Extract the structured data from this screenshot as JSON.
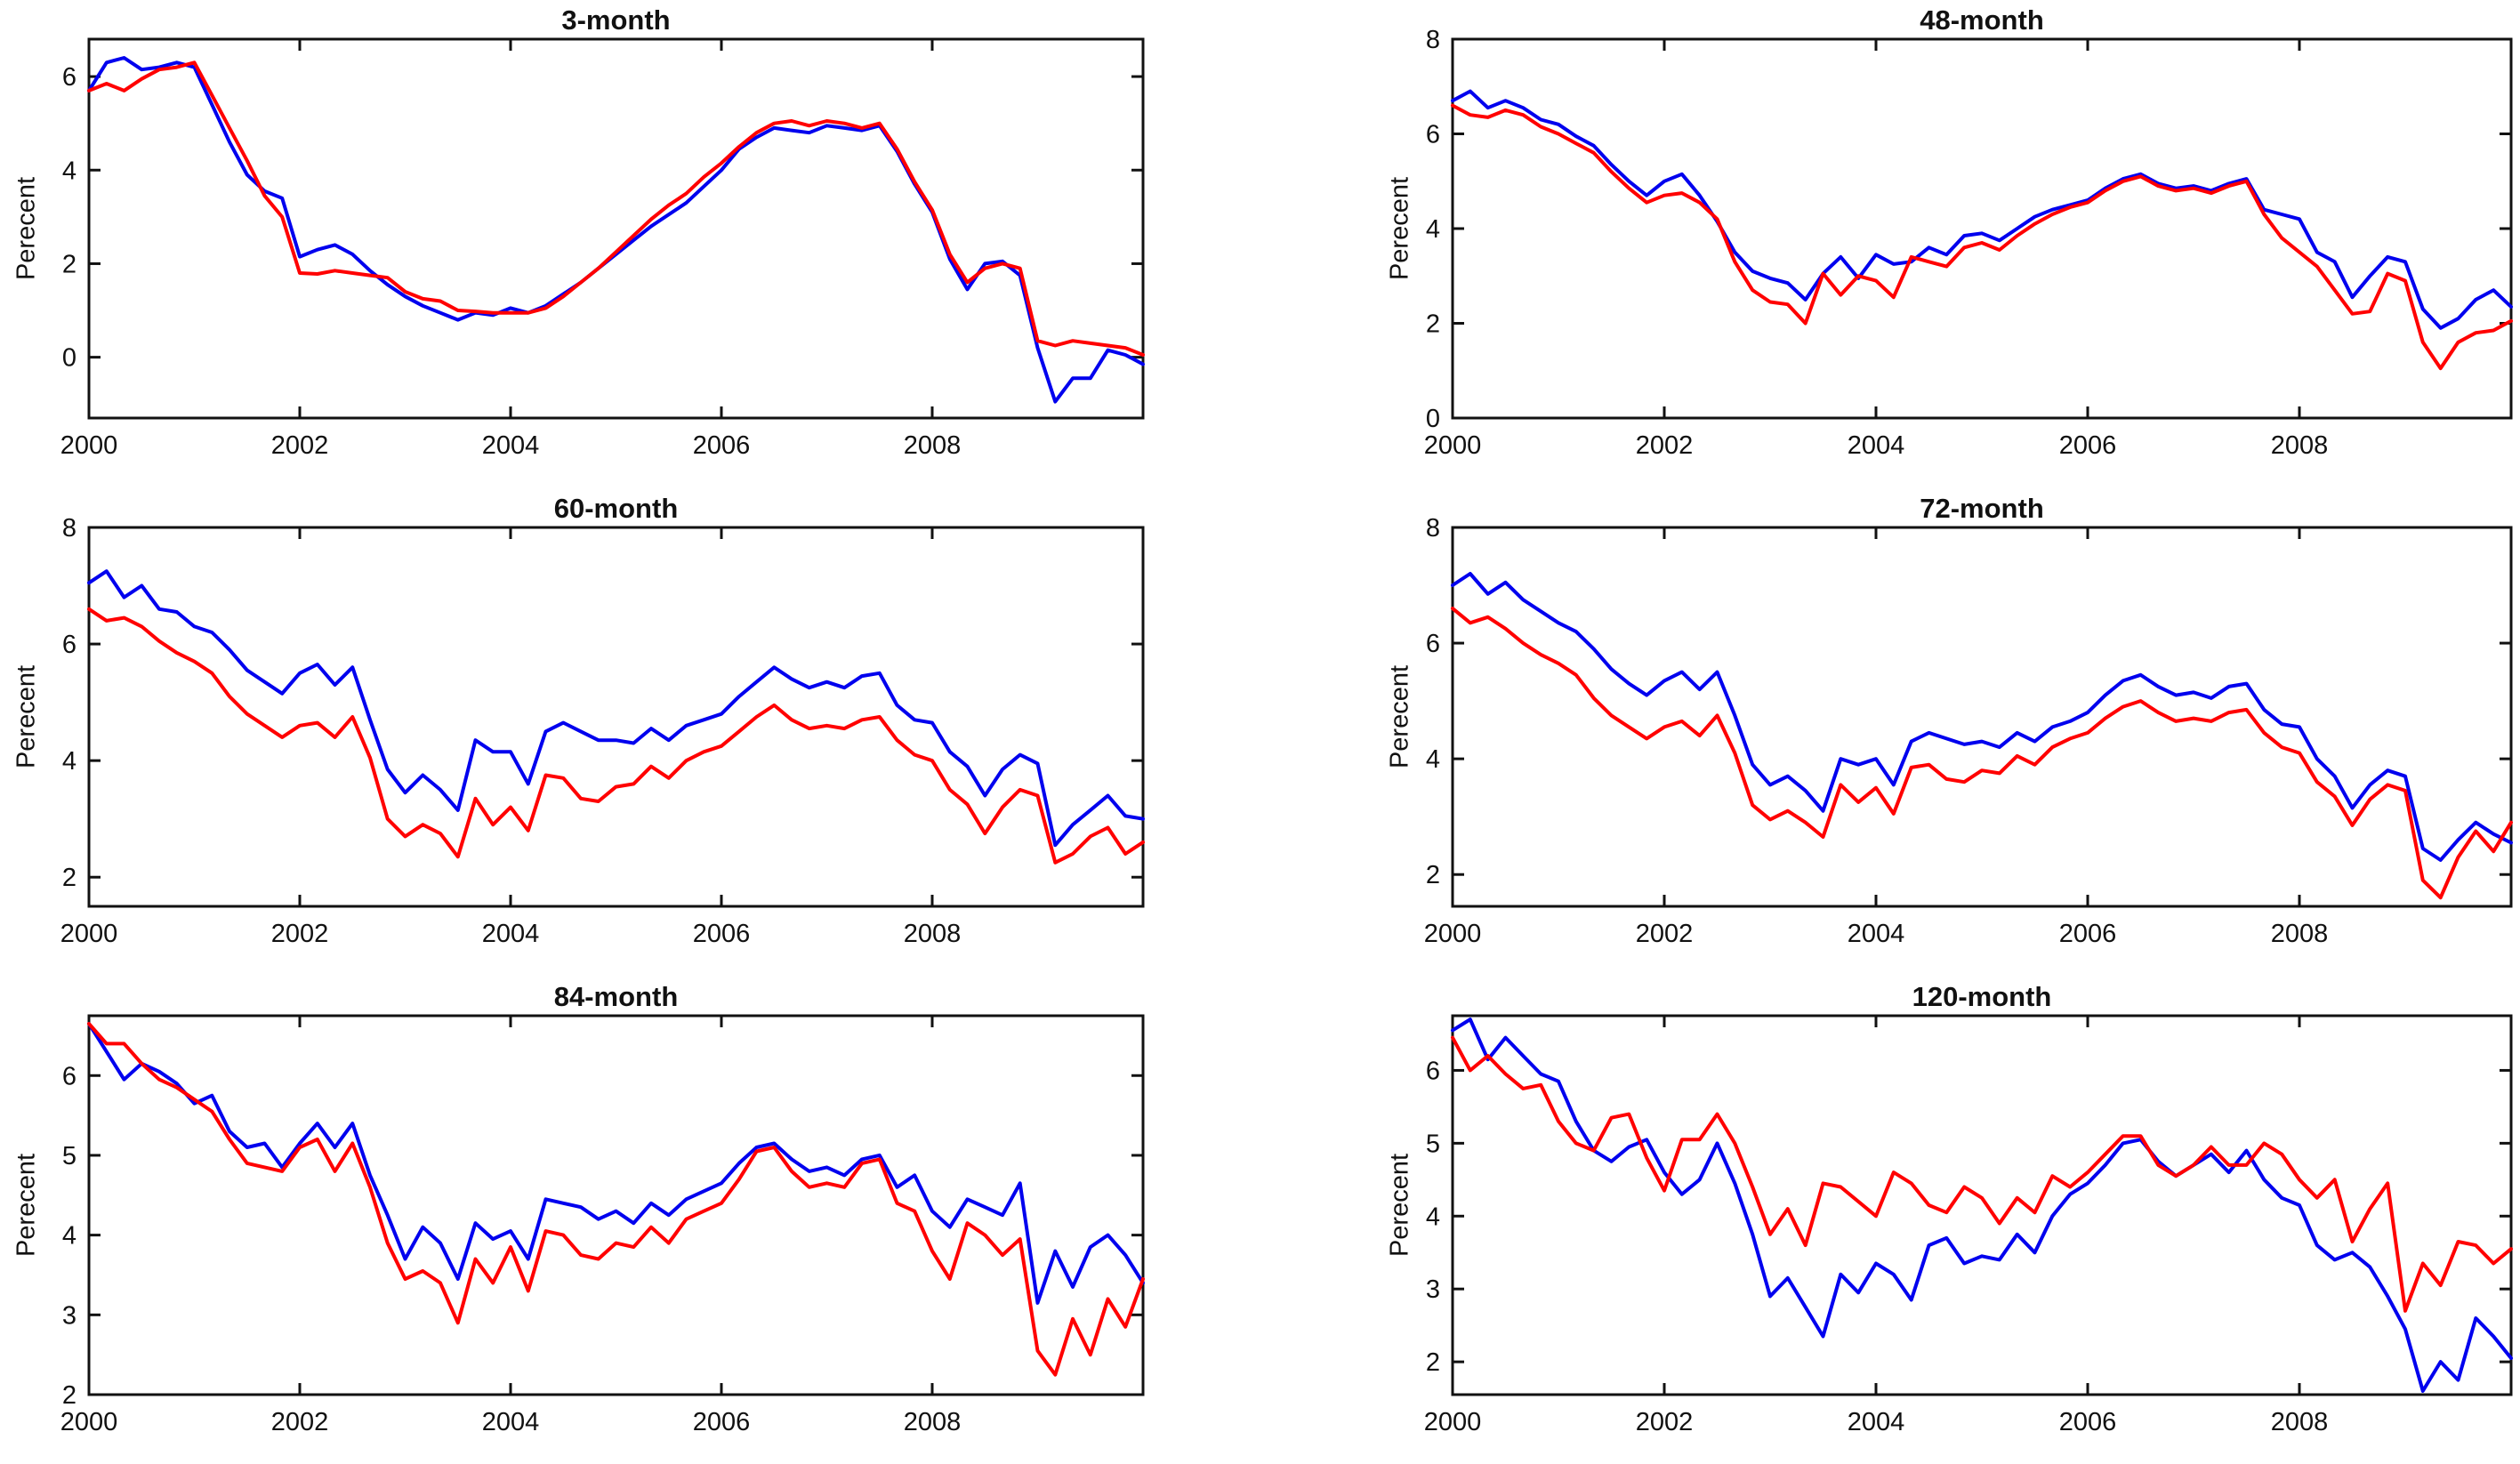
{
  "figure": {
    "background": "#ffffff",
    "axis_color": "#111111",
    "line_colors": {
      "blue": "#0000ee",
      "red": "#ff0000"
    }
  },
  "chart_data": [
    {
      "type": "line",
      "title": "3-month",
      "ylabel": "Perecent",
      "xlabel": "",
      "xlim": [
        2000,
        2010
      ],
      "ylim": [
        -1.3,
        6.8
      ],
      "xticks": [
        2000,
        2002,
        2004,
        2006,
        2008
      ],
      "yticks": [
        0,
        2,
        4,
        6
      ],
      "x_start": 2000,
      "x_step_years": 0.1667,
      "grid": false,
      "legend": "none",
      "series": [
        {
          "name": "blue",
          "color": "#0000ee",
          "values": [
            5.7,
            6.3,
            6.4,
            6.15,
            6.2,
            6.3,
            6.2,
            5.4,
            4.6,
            3.9,
            3.55,
            3.4,
            2.15,
            2.3,
            2.4,
            2.2,
            1.85,
            1.55,
            1.3,
            1.1,
            0.95,
            0.8,
            0.95,
            0.9,
            1.05,
            0.95,
            1.1,
            1.35,
            1.6,
            1.9,
            2.2,
            2.5,
            2.8,
            3.05,
            3.3,
            3.65,
            4.0,
            4.45,
            4.7,
            4.9,
            4.85,
            4.8,
            4.95,
            4.9,
            4.85,
            4.95,
            4.4,
            3.7,
            3.1,
            2.1,
            1.45,
            2.0,
            2.05,
            1.75,
            0.2,
            -0.95,
            -0.45,
            -0.45,
            0.15,
            0.05,
            -0.15
          ]
        },
        {
          "name": "red",
          "color": "#ff0000",
          "values": [
            5.7,
            5.85,
            5.7,
            5.95,
            6.15,
            6.2,
            6.3,
            5.6,
            4.9,
            4.2,
            3.45,
            3.0,
            1.8,
            1.78,
            1.85,
            1.8,
            1.75,
            1.7,
            1.4,
            1.25,
            1.2,
            1.0,
            0.98,
            0.95,
            0.95,
            0.95,
            1.05,
            1.3,
            1.6,
            1.9,
            2.25,
            2.6,
            2.95,
            3.25,
            3.5,
            3.85,
            4.15,
            4.5,
            4.8,
            5.0,
            5.05,
            4.95,
            5.05,
            5.0,
            4.9,
            5.0,
            4.45,
            3.75,
            3.15,
            2.2,
            1.6,
            1.9,
            2.0,
            1.9,
            0.35,
            0.25,
            0.35,
            0.3,
            0.25,
            0.2,
            0.05
          ]
        }
      ]
    },
    {
      "type": "line",
      "title": "48-month",
      "ylabel": "Perecent",
      "xlabel": "",
      "xlim": [
        2000,
        2010
      ],
      "ylim": [
        0,
        8
      ],
      "xticks": [
        2000,
        2002,
        2004,
        2006,
        2008
      ],
      "yticks": [
        0,
        2,
        4,
        6,
        8
      ],
      "x_start": 2000,
      "x_step_years": 0.1667,
      "grid": false,
      "legend": "none",
      "series": [
        {
          "name": "blue",
          "color": "#0000ee",
          "values": [
            6.7,
            6.9,
            6.55,
            6.7,
            6.55,
            6.3,
            6.2,
            5.95,
            5.75,
            5.35,
            5.0,
            4.7,
            5.0,
            5.15,
            4.7,
            4.15,
            3.5,
            3.1,
            2.95,
            2.85,
            2.5,
            3.05,
            3.4,
            2.95,
            3.45,
            3.25,
            3.3,
            3.6,
            3.45,
            3.85,
            3.9,
            3.75,
            4.0,
            4.25,
            4.4,
            4.5,
            4.6,
            4.85,
            5.05,
            5.15,
            4.95,
            4.85,
            4.9,
            4.8,
            4.95,
            5.05,
            4.4,
            4.3,
            4.2,
            3.5,
            3.3,
            2.55,
            3.0,
            3.4,
            3.3,
            2.3,
            1.9,
            2.1,
            2.5,
            2.7,
            2.35
          ]
        },
        {
          "name": "red",
          "color": "#ff0000",
          "values": [
            6.6,
            6.4,
            6.35,
            6.5,
            6.4,
            6.15,
            6.0,
            5.8,
            5.6,
            5.2,
            4.85,
            4.55,
            4.7,
            4.75,
            4.55,
            4.2,
            3.3,
            2.7,
            2.45,
            2.4,
            2.0,
            3.05,
            2.6,
            3.0,
            2.9,
            2.55,
            3.4,
            3.3,
            3.2,
            3.6,
            3.7,
            3.55,
            3.85,
            4.1,
            4.3,
            4.45,
            4.55,
            4.8,
            5.0,
            5.1,
            4.9,
            4.8,
            4.85,
            4.75,
            4.9,
            5.0,
            4.3,
            3.8,
            3.5,
            3.2,
            2.7,
            2.2,
            2.25,
            3.05,
            2.9,
            1.6,
            1.05,
            1.6,
            1.8,
            1.85,
            2.05
          ]
        }
      ]
    },
    {
      "type": "line",
      "title": "60-month",
      "ylabel": "Perecent",
      "xlabel": "",
      "xlim": [
        2000,
        2010
      ],
      "ylim": [
        1.5,
        8
      ],
      "xticks": [
        2000,
        2002,
        2004,
        2006,
        2008
      ],
      "yticks": [
        2,
        4,
        6,
        8
      ],
      "x_start": 2000,
      "x_step_years": 0.1667,
      "grid": false,
      "legend": "none",
      "series": [
        {
          "name": "blue",
          "color": "#0000ee",
          "values": [
            7.05,
            7.25,
            6.8,
            7.0,
            6.6,
            6.55,
            6.3,
            6.2,
            5.9,
            5.55,
            5.35,
            5.15,
            5.5,
            5.65,
            5.3,
            5.6,
            4.7,
            3.85,
            3.45,
            3.75,
            3.5,
            3.15,
            4.35,
            4.15,
            4.15,
            3.6,
            4.5,
            4.65,
            4.5,
            4.35,
            4.35,
            4.3,
            4.55,
            4.35,
            4.6,
            4.7,
            4.8,
            5.1,
            5.35,
            5.6,
            5.4,
            5.25,
            5.35,
            5.25,
            5.45,
            5.5,
            4.95,
            4.7,
            4.65,
            4.15,
            3.9,
            3.4,
            3.85,
            4.1,
            3.95,
            2.55,
            2.9,
            3.15,
            3.4,
            3.05,
            3.0
          ]
        },
        {
          "name": "red",
          "color": "#ff0000",
          "values": [
            6.6,
            6.4,
            6.45,
            6.3,
            6.05,
            5.85,
            5.7,
            5.5,
            5.1,
            4.8,
            4.6,
            4.4,
            4.6,
            4.65,
            4.4,
            4.75,
            4.05,
            3.0,
            2.7,
            2.9,
            2.75,
            2.35,
            3.35,
            2.9,
            3.2,
            2.8,
            3.75,
            3.7,
            3.35,
            3.3,
            3.55,
            3.6,
            3.9,
            3.7,
            4.0,
            4.15,
            4.25,
            4.5,
            4.75,
            4.95,
            4.7,
            4.55,
            4.6,
            4.55,
            4.7,
            4.75,
            4.35,
            4.1,
            4.0,
            3.5,
            3.25,
            2.75,
            3.2,
            3.5,
            3.4,
            2.25,
            2.4,
            2.7,
            2.85,
            2.4,
            2.6
          ]
        }
      ]
    },
    {
      "type": "line",
      "title": "72-month",
      "ylabel": "Perecent",
      "xlabel": "",
      "xlim": [
        2000,
        2010
      ],
      "ylim": [
        1.45,
        8
      ],
      "xticks": [
        2000,
        2002,
        2004,
        2006,
        2008
      ],
      "yticks": [
        2,
        4,
        6,
        8
      ],
      "x_start": 2000,
      "x_step_years": 0.1667,
      "grid": false,
      "legend": "none",
      "series": [
        {
          "name": "blue",
          "color": "#0000ee",
          "values": [
            7.0,
            7.2,
            6.85,
            7.05,
            6.75,
            6.55,
            6.35,
            6.2,
            5.9,
            5.55,
            5.3,
            5.1,
            5.35,
            5.5,
            5.2,
            5.5,
            4.75,
            3.9,
            3.55,
            3.7,
            3.45,
            3.1,
            4.0,
            3.9,
            4.0,
            3.55,
            4.3,
            4.45,
            4.35,
            4.25,
            4.3,
            4.2,
            4.45,
            4.3,
            4.55,
            4.65,
            4.8,
            5.1,
            5.35,
            5.45,
            5.25,
            5.1,
            5.15,
            5.05,
            5.25,
            5.3,
            4.85,
            4.6,
            4.55,
            4.0,
            3.7,
            3.15,
            3.55,
            3.8,
            3.7,
            2.45,
            2.25,
            2.6,
            2.9,
            2.7,
            2.55
          ]
        },
        {
          "name": "red",
          "color": "#ff0000",
          "values": [
            6.6,
            6.35,
            6.45,
            6.25,
            6.0,
            5.8,
            5.65,
            5.45,
            5.05,
            4.75,
            4.55,
            4.35,
            4.55,
            4.65,
            4.4,
            4.75,
            4.1,
            3.2,
            2.95,
            3.1,
            2.9,
            2.65,
            3.55,
            3.25,
            3.5,
            3.05,
            3.85,
            3.9,
            3.65,
            3.6,
            3.8,
            3.75,
            4.05,
            3.9,
            4.2,
            4.35,
            4.45,
            4.7,
            4.9,
            5.0,
            4.8,
            4.65,
            4.7,
            4.65,
            4.8,
            4.85,
            4.45,
            4.2,
            4.1,
            3.6,
            3.35,
            2.85,
            3.3,
            3.55,
            3.45,
            1.9,
            1.6,
            2.3,
            2.75,
            2.4,
            2.9
          ]
        }
      ]
    },
    {
      "type": "line",
      "title": "84-month",
      "ylabel": "Perecent",
      "xlabel": "",
      "xlim": [
        2000,
        2010
      ],
      "ylim": [
        2,
        6.75
      ],
      "xticks": [
        2000,
        2002,
        2004,
        2006,
        2008
      ],
      "yticks": [
        2,
        3,
        4,
        5,
        6
      ],
      "x_start": 2000,
      "x_step_years": 0.1667,
      "grid": false,
      "legend": "none",
      "series": [
        {
          "name": "blue",
          "color": "#0000ee",
          "values": [
            6.65,
            6.3,
            5.95,
            6.15,
            6.05,
            5.9,
            5.65,
            5.75,
            5.3,
            5.1,
            5.15,
            4.85,
            5.15,
            5.4,
            5.1,
            5.4,
            4.75,
            4.25,
            3.7,
            4.1,
            3.9,
            3.45,
            4.15,
            3.95,
            4.05,
            3.7,
            4.45,
            4.4,
            4.35,
            4.2,
            4.3,
            4.15,
            4.4,
            4.25,
            4.45,
            4.55,
            4.65,
            4.9,
            5.1,
            5.15,
            4.95,
            4.8,
            4.85,
            4.75,
            4.95,
            5.0,
            4.6,
            4.75,
            4.3,
            4.1,
            4.45,
            4.35,
            4.25,
            4.65,
            3.15,
            3.8,
            3.35,
            3.85,
            4.0,
            3.75,
            3.4
          ]
        },
        {
          "name": "red",
          "color": "#ff0000",
          "values": [
            6.65,
            6.4,
            6.4,
            6.15,
            5.95,
            5.85,
            5.7,
            5.55,
            5.2,
            4.9,
            4.85,
            4.8,
            5.1,
            5.2,
            4.8,
            5.15,
            4.6,
            3.9,
            3.45,
            3.55,
            3.4,
            2.9,
            3.7,
            3.4,
            3.85,
            3.3,
            4.05,
            4.0,
            3.75,
            3.7,
            3.9,
            3.85,
            4.1,
            3.9,
            4.2,
            4.3,
            4.4,
            4.7,
            5.05,
            5.1,
            4.8,
            4.6,
            4.65,
            4.6,
            4.9,
            4.95,
            4.4,
            4.3,
            3.8,
            3.45,
            4.15,
            4.0,
            3.75,
            3.95,
            2.55,
            2.25,
            2.95,
            2.5,
            3.2,
            2.85,
            3.45
          ]
        }
      ]
    },
    {
      "type": "line",
      "title": "120-month",
      "ylabel": "Perecent",
      "xlabel": "",
      "xlim": [
        2000,
        2010
      ],
      "ylim": [
        1.55,
        6.75
      ],
      "xticks": [
        2000,
        2002,
        2004,
        2006,
        2008
      ],
      "yticks": [
        2,
        3,
        4,
        5,
        6
      ],
      "x_start": 2000,
      "x_step_years": 0.1667,
      "grid": false,
      "legend": "none",
      "series": [
        {
          "name": "blue",
          "color": "#0000ee",
          "values": [
            6.55,
            6.7,
            6.15,
            6.45,
            6.2,
            5.95,
            5.85,
            5.3,
            4.9,
            4.75,
            4.95,
            5.05,
            4.6,
            4.3,
            4.5,
            5.0,
            4.45,
            3.75,
            2.9,
            3.15,
            2.75,
            2.35,
            3.2,
            2.95,
            3.35,
            3.2,
            2.85,
            3.6,
            3.7,
            3.35,
            3.45,
            3.4,
            3.75,
            3.5,
            4.0,
            4.3,
            4.45,
            4.7,
            5.0,
            5.05,
            4.75,
            4.55,
            4.7,
            4.85,
            4.6,
            4.9,
            4.5,
            4.25,
            4.15,
            3.6,
            3.4,
            3.5,
            3.3,
            2.9,
            2.45,
            1.6,
            2.0,
            1.75,
            2.6,
            2.35,
            2.05
          ]
        },
        {
          "name": "red",
          "color": "#ff0000",
          "values": [
            6.45,
            6.0,
            6.2,
            5.95,
            5.75,
            5.8,
            5.3,
            5.0,
            4.9,
            5.35,
            5.4,
            4.8,
            4.35,
            5.05,
            5.05,
            5.4,
            5.0,
            4.4,
            3.75,
            4.1,
            3.6,
            4.45,
            4.4,
            4.2,
            4.0,
            4.6,
            4.45,
            4.15,
            4.05,
            4.4,
            4.25,
            3.9,
            4.25,
            4.05,
            4.55,
            4.4,
            4.6,
            4.85,
            5.1,
            5.1,
            4.7,
            4.55,
            4.7,
            4.95,
            4.7,
            4.7,
            5.0,
            4.85,
            4.5,
            4.25,
            4.5,
            3.65,
            4.1,
            4.45,
            2.7,
            3.35,
            3.05,
            3.65,
            3.6,
            3.35,
            3.55
          ]
        }
      ]
    }
  ]
}
